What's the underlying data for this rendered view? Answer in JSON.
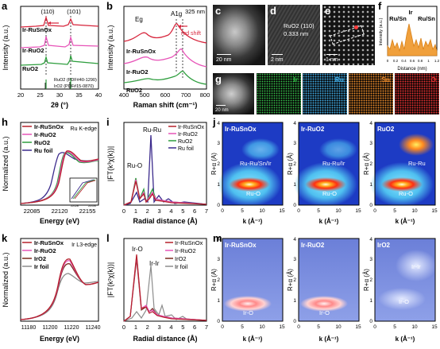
{
  "panels": {
    "a": "a",
    "b": "b",
    "c": "c",
    "d": "d",
    "e": "e",
    "f": "f",
    "g": "g",
    "h": "h",
    "i": "i",
    "j": "j",
    "k": "k",
    "l": "l",
    "m": "m"
  },
  "a": {
    "ylabel": "Intensity (a.u.)",
    "xlabel": "2θ (°)",
    "xticks": [
      "20",
      "25",
      "30",
      "35",
      "40"
    ],
    "peaks": [
      "(110)",
      "(101)"
    ],
    "series": [
      "Ir-RuSnOx",
      "Ir-RuO2",
      "RuO2"
    ],
    "refs": [
      "RuO2 (PDF#40-1290)",
      "IrO2 (PDF#15-0870)"
    ],
    "colors": [
      "#d7263d",
      "#e754b8",
      "#2e9e3e"
    ]
  },
  "b": {
    "ylabel": "Intensity (a.u.)",
    "xlabel": "Raman shift (cm⁻¹)",
    "xticks": [
      "400",
      "500",
      "600",
      "700",
      "800"
    ],
    "laser": "325 nm",
    "bands": [
      "Eg",
      "A1g"
    ],
    "shift_note": "red shift",
    "series": [
      "Ir-RuSnOx",
      "Ir-RuO2",
      "RuO2"
    ]
  },
  "c": {
    "scale": "20 nm"
  },
  "d": {
    "scale": "2 nm",
    "plane": "RuO2 (110)",
    "spacing": "0.333 nm"
  },
  "e": {
    "scale": "1 nm"
  },
  "f": {
    "ylabel": "Intensity (a.u.)",
    "xlabel": "Distance (nm)",
    "xticks": [
      "0",
      "0.2",
      "0.4",
      "0.6",
      "0.8",
      "1",
      "1.2"
    ],
    "labels": [
      "Ir",
      "Ru/Sn",
      "Ru/Sn"
    ]
  },
  "g": {
    "scale": "20 nm",
    "elements": [
      "Ir",
      "Ru",
      "Sn",
      "O"
    ],
    "colors": [
      "#35c24a",
      "#3fa8e0",
      "#e8882a",
      "#e33030"
    ]
  },
  "h": {
    "ylabel": "Normalized (a.u.)",
    "xlabel": "Energy (eV)",
    "edge": "Ru K-edge",
    "xticks": [
      "22085",
      "22120",
      "22155"
    ],
    "inset_ticks": [
      "22128",
      "22134"
    ],
    "series": [
      "Ir-RuSnOx",
      "Ir-RuO2",
      "RuO2",
      "Ru foil"
    ],
    "colors": [
      "#b5202b",
      "#e754b8",
      "#2e9e3e",
      "#3b2a8c"
    ]
  },
  "i": {
    "ylabel": "|FT(k³χ(k))|",
    "xlabel": "Radial distance (Å)",
    "xticks": [
      "0",
      "1",
      "2",
      "3",
      "4",
      "5",
      "6",
      "7"
    ],
    "annotations": [
      "Ru-Ru",
      "Ru-O"
    ],
    "series": [
      "Ir-RuSnOx",
      "Ir-RuO2",
      "RuO2",
      "Ru foil"
    ]
  },
  "j": {
    "ylabel": "R+α (Å)",
    "xlabel": "k (Å⁻¹)",
    "xticks": [
      "0",
      "5",
      "10",
      "15"
    ],
    "yticks": [
      "0",
      "1",
      "2",
      "3",
      "4"
    ],
    "maps": [
      {
        "title": "Ir-RuSnOx",
        "labels": [
          "Ru-Ru/Sn/Ir",
          "Ru-O"
        ]
      },
      {
        "title": "Ir-RuO2",
        "labels": [
          "Ru-Ru/Ir",
          "Ru-O"
        ]
      },
      {
        "title": "RuO2",
        "labels": [
          "Ru-Ru",
          "Ru-O"
        ]
      }
    ]
  },
  "k": {
    "ylabel": "Normalized (a.u.)",
    "xlabel": "Energy (eV)",
    "edge": "Ir L3-edge",
    "xticks": [
      "11180",
      "11200",
      "11220",
      "11240"
    ],
    "series": [
      "Ir-RuSnOx",
      "Ir-RuO2",
      "IrO2",
      "Ir foil"
    ],
    "colors": [
      "#b5202b",
      "#e754b8",
      "#7a2a1f",
      "#8c8c8c"
    ]
  },
  "l": {
    "ylabel": "|FT(k²χ(k))|",
    "xlabel": "Radial distance (Å)",
    "xticks": [
      "0",
      "1",
      "2",
      "3",
      "4",
      "5",
      "6",
      "7"
    ],
    "annotations": [
      "Ir-O",
      "Ir-Ir"
    ],
    "series": [
      "Ir-RuSnOx",
      "Ir-RuO2",
      "IrO2",
      "Ir foil"
    ]
  },
  "m": {
    "ylabel": "R+α (Å)",
    "xlabel": "k (Å⁻¹)",
    "xticks": [
      "0",
      "5",
      "10",
      "15"
    ],
    "yticks": [
      "0",
      "1",
      "2",
      "3",
      "4"
    ],
    "maps": [
      {
        "title": "Ir-RuSnOx",
        "labels": [
          "Ir-O"
        ]
      },
      {
        "title": "Ir-RuO2",
        "labels": [
          "Ir-O"
        ]
      },
      {
        "title": "IrO2",
        "labels": [
          "Ir-Ir",
          "Ir-O"
        ]
      }
    ]
  }
}
